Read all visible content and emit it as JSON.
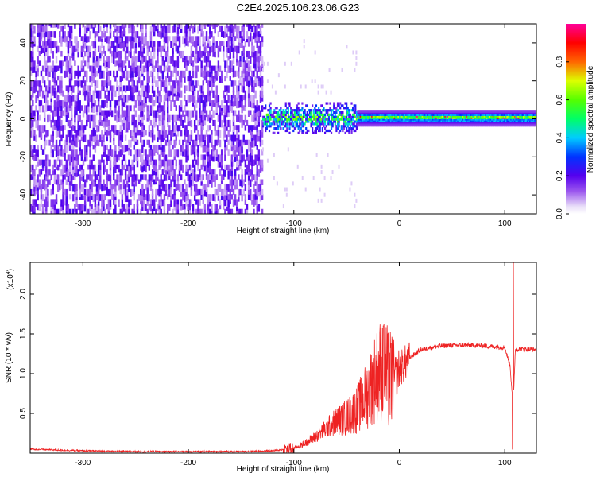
{
  "title": "C2E4.2025.106.23.06.G23",
  "chart_data": [
    {
      "type": "heatmap",
      "title": "C2E4.2025.106.23.06.G23",
      "xlabel": "Height of straight line (km)",
      "ylabel": "Frequency (Hz)",
      "xlim": [
        -350,
        130
      ],
      "ylim": [
        -50,
        50
      ],
      "xticks": [
        -300,
        -200,
        -100,
        0,
        100
      ],
      "xtick_labels": [
        "-300",
        "-200",
        "-100",
        "0",
        "100"
      ],
      "yticks": [
        -40,
        -20,
        0,
        20,
        40
      ],
      "ytick_labels": [
        "-40",
        "-20",
        "0",
        "20",
        "40"
      ],
      "colorbar": {
        "label": "Normalized spectral amplitude",
        "range": [
          0,
          1
        ],
        "ticks": [
          0.0,
          0.2,
          0.4,
          0.6,
          0.8
        ],
        "tick_labels": [
          "0.0",
          "0.2",
          "0.4",
          "0.6",
          "0.8"
        ],
        "colormap": "rainbow (white-violet-blue-cyan-green-yellow-red-magenta)"
      },
      "regions": [
        {
          "x_range": [
            -350,
            -130
          ],
          "freq_range": [
            -50,
            50
          ],
          "amplitude": 0.1,
          "note": "scattered noise"
        },
        {
          "x_range": [
            -130,
            -40
          ],
          "freq_center": 0,
          "freq_halfwidth": 8,
          "amplitude": 0.4
        },
        {
          "x_range": [
            -40,
            130
          ],
          "freq_center": 0,
          "freq_halfwidth": 2,
          "amplitude": 0.6
        }
      ],
      "grid": false
    },
    {
      "type": "line",
      "xlabel": "Height of straight line (km)",
      "ylabel": "SNR (10 * v/v)",
      "y_multiplier_label": "(x10",
      "y_multiplier_exp": "4",
      "xlim": [
        -350,
        130
      ],
      "ylim": [
        0,
        2.4
      ],
      "xticks": [
        -300,
        -200,
        -100,
        0,
        100
      ],
      "xtick_labels": [
        "-300",
        "-200",
        "-100",
        "0",
        "100"
      ],
      "yticks": [
        0.5,
        1.0,
        1.5,
        2.0
      ],
      "ytick_labels": [
        "0.5",
        "1.0",
        "1.5",
        "2.0"
      ],
      "color": "#ee2222",
      "series": [
        {
          "x": [
            -350,
            -300,
            -250,
            -200,
            -150,
            -120,
            -100,
            -90,
            -80,
            -70,
            -60,
            -50,
            -40,
            -30,
            -25,
            -20,
            -15,
            -10,
            -5,
            0,
            10,
            20,
            30,
            40,
            60,
            80,
            100,
            105,
            108,
            110,
            115,
            130
          ],
          "y": [
            0.05,
            0.03,
            0.02,
            0.02,
            0.02,
            0.03,
            0.06,
            0.12,
            0.2,
            0.3,
            0.4,
            0.45,
            0.55,
            0.75,
            0.9,
            1.0,
            1.1,
            0.9,
            0.95,
            1.05,
            1.2,
            1.3,
            1.33,
            1.35,
            1.36,
            1.35,
            1.33,
            1.1,
            0.6,
            1.3,
            1.31,
            1.3
          ]
        }
      ],
      "spikes": [
        {
          "x": -15,
          "y": 1.6
        },
        {
          "x": 108,
          "y": 2.4
        },
        {
          "x": 107.5,
          "y": 0.05
        }
      ],
      "grid": false
    }
  ]
}
